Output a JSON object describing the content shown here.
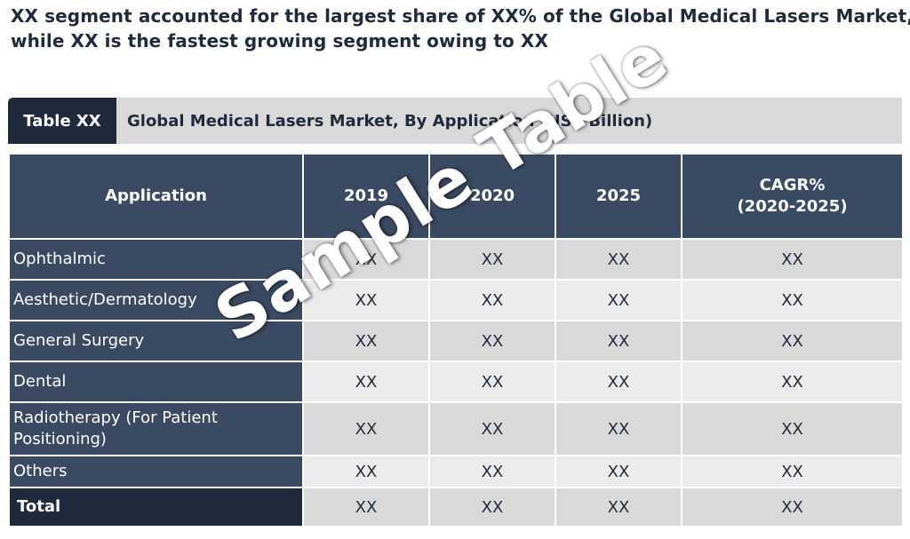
{
  "headline": {
    "line1": "XX segment accounted for the largest share of XX% of the Global Medical Lasers Market,",
    "line2": "while XX is the fastest growing segment owing to XX"
  },
  "caption": {
    "tag": "Table XX",
    "title": "Global Medical Lasers Market, By Application (US$ Billion)"
  },
  "table": {
    "columns": [
      "Application",
      "2019",
      "2020",
      "2025",
      "CAGR%",
      "(2020-2025)"
    ],
    "rows": [
      {
        "label": "Ophthalmic",
        "values": [
          "XX",
          "XX",
          "XX",
          "XX"
        ]
      },
      {
        "label": "Aesthetic/Dermatology",
        "values": [
          "XX",
          "XX",
          "XX",
          "XX"
        ]
      },
      {
        "label": "General Surgery",
        "values": [
          "XX",
          "XX",
          "XX",
          "XX"
        ]
      },
      {
        "label": "Dental",
        "values": [
          "XX",
          "XX",
          "XX",
          "XX"
        ]
      },
      {
        "label": "Radiotherapy (For Patient",
        "label2": "Positioning)",
        "values": [
          "XX",
          "XX",
          "XX",
          "XX"
        ]
      },
      {
        "label": "Others",
        "values": [
          "XX",
          "XX",
          "XX",
          "XX"
        ]
      },
      {
        "label": "Total",
        "values": [
          "XX",
          "XX",
          "XX",
          "XX"
        ]
      }
    ]
  },
  "watermark": "Sample Table"
}
